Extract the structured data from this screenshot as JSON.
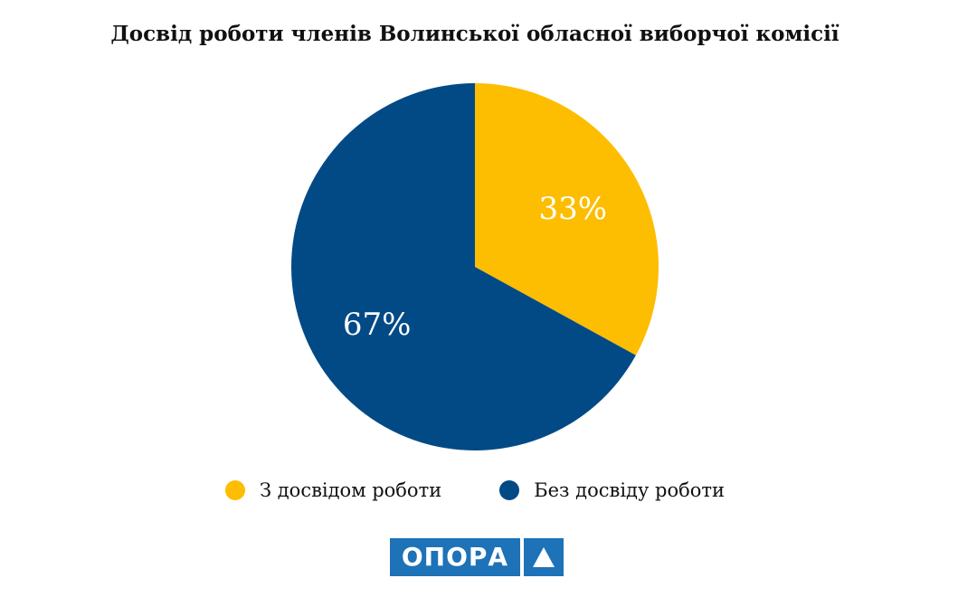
{
  "chart_data": {
    "type": "pie",
    "title": "Досвід роботи членів Волинської обласної виборчої комісії",
    "slices": [
      {
        "name": "З досвідом роботи",
        "value": 33,
        "label": "33%",
        "color": "#fdbd00"
      },
      {
        "name": "Без досвіду роботи",
        "value": 67,
        "label": "67%",
        "color": "#024a86"
      }
    ],
    "start_angle_deg": 0,
    "direction": "clockwise",
    "legend_position": "bottom"
  },
  "logo": {
    "text": "ОПОРА",
    "icon": "triangle-icon"
  }
}
